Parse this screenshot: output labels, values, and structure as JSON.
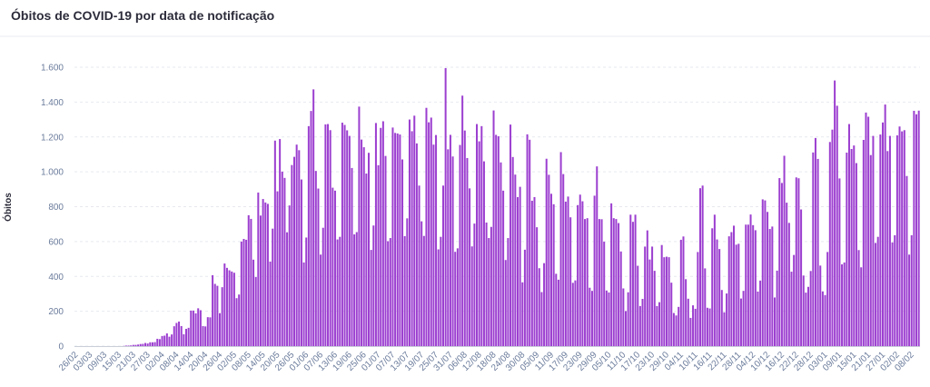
{
  "chart_data": {
    "type": "bar",
    "title": "Óbitos de COVID-19 por data de notificação",
    "y_label": "Óbitos",
    "color": "#9c3fd0",
    "grid": true,
    "ylim": [
      0,
      1600
    ],
    "yticks": [
      0,
      200,
      400,
      600,
      800,
      {
        "value": 1000,
        "label": "1.000"
      },
      {
        "value": 1200,
        "label": "1.200"
      },
      {
        "value": 1400,
        "label": "1.400"
      },
      {
        "value": 1600,
        "label": "1.600"
      }
    ],
    "categories": [
      "26/02",
      null,
      null,
      null,
      null,
      null,
      "03/03",
      null,
      null,
      null,
      null,
      null,
      "09/03",
      null,
      null,
      null,
      null,
      null,
      "15/03",
      null,
      null,
      null,
      null,
      null,
      "21/03",
      null,
      null,
      null,
      null,
      null,
      "27/03",
      null,
      null,
      null,
      null,
      null,
      "02/04",
      null,
      null,
      null,
      null,
      null,
      "08/04",
      null,
      null,
      null,
      null,
      null,
      "14/04",
      null,
      null,
      null,
      null,
      null,
      "20/04",
      null,
      null,
      null,
      null,
      null,
      "26/04",
      null,
      null,
      null,
      null,
      null,
      "02/05",
      null,
      null,
      null,
      null,
      null,
      "08/05",
      null,
      null,
      null,
      null,
      null,
      "14/05",
      null,
      null,
      null,
      null,
      null,
      "20/05",
      null,
      null,
      null,
      null,
      null,
      "26/05",
      null,
      null,
      null,
      null,
      null,
      "01/06",
      null,
      null,
      null,
      null,
      null,
      "07/06",
      null,
      null,
      null,
      null,
      null,
      "13/06",
      null,
      null,
      null,
      null,
      null,
      "19/06",
      null,
      null,
      null,
      null,
      null,
      "25/06",
      null,
      null,
      null,
      null,
      null,
      "01/07",
      null,
      null,
      null,
      null,
      null,
      "07/07",
      null,
      null,
      null,
      null,
      null,
      "13/07",
      null,
      null,
      null,
      null,
      null,
      "19/07",
      null,
      null,
      null,
      null,
      null,
      "25/07",
      null,
      null,
      null,
      null,
      null,
      "31/07",
      null,
      null,
      null,
      null,
      null,
      "06/08",
      null,
      null,
      null,
      null,
      null,
      "12/08",
      null,
      null,
      null,
      null,
      null,
      "18/08",
      null,
      null,
      null,
      null,
      null,
      "24/08",
      null,
      null,
      null,
      null,
      null,
      "30/08",
      null,
      null,
      null,
      null,
      null,
      "05/09",
      null,
      null,
      null,
      null,
      null,
      "11/09",
      null,
      null,
      null,
      null,
      null,
      "17/09",
      null,
      null,
      null,
      null,
      null,
      "23/09",
      null,
      null,
      null,
      null,
      null,
      "29/09",
      null,
      null,
      null,
      null,
      null,
      "05/10",
      null,
      null,
      null,
      null,
      null,
      "11/10",
      null,
      null,
      null,
      null,
      null,
      "17/10",
      null,
      null,
      null,
      null,
      null,
      "23/10",
      null,
      null,
      null,
      null,
      null,
      "29/10",
      null,
      null,
      null,
      null,
      null,
      "04/11",
      null,
      null,
      null,
      null,
      null,
      "10/11",
      null,
      null,
      null,
      null,
      null,
      "16/11",
      null,
      null,
      null,
      null,
      null,
      "22/11",
      null,
      null,
      null,
      null,
      null,
      "28/11",
      null,
      null,
      null,
      null,
      null,
      "04/12",
      null,
      null,
      null,
      null,
      null,
      "10/12",
      null,
      null,
      null,
      null,
      null,
      "16/12",
      null,
      null,
      null,
      null,
      null,
      "22/12",
      null,
      null,
      null,
      null,
      null,
      "28/12",
      null,
      null,
      null,
      null,
      null,
      "03/01",
      null,
      null,
      null,
      null,
      null,
      "09/01",
      null,
      null,
      null,
      null,
      null,
      "15/01",
      null,
      null,
      null,
      null,
      null,
      "21/01",
      null,
      null,
      null,
      null,
      null,
      "27/01",
      null,
      null,
      null,
      null,
      null,
      "02/02",
      null,
      null,
      null,
      null,
      null,
      "08/02",
      null,
      null,
      null
    ],
    "values": [
      0,
      0,
      0,
      0,
      0,
      0,
      0,
      0,
      0,
      0,
      0,
      0,
      0,
      0,
      0,
      0,
      0,
      0,
      0,
      0,
      1,
      3,
      3,
      4,
      7,
      7,
      9,
      12,
      13,
      18,
      15,
      22,
      22,
      23,
      42,
      40,
      58,
      60,
      73,
      54,
      67,
      114,
      133,
      141,
      115,
      68,
      99,
      105,
      204,
      204,
      188,
      217,
      206,
      115,
      113,
      166,
      165,
      407,
      357,
      346,
      189,
      338,
      474,
      449,
      435,
      428,
      421,
      275,
      296,
      600,
      615,
      610,
      751,
      730,
      496,
      396,
      881,
      749,
      844,
      824,
      816,
      485,
      674,
      1179,
      888,
      1188,
      1001,
      965,
      653,
      807,
      1039,
      1086,
      1156,
      1124,
      956,
      480,
      623,
      1262,
      1349,
      1473,
      1005,
      904,
      525,
      679,
      1272,
      1274,
      1239,
      909,
      892,
      612,
      627,
      1282,
      1269,
      1238,
      1206,
      1022,
      641,
      654,
      1374,
      1185,
      1141,
      990,
      1109,
      552,
      692,
      1280,
      1038,
      1252,
      1290,
      1091,
      602,
      620,
      1254,
      1223,
      1220,
      1214,
      1071,
      631,
      733,
      1300,
      1233,
      1322,
      1163,
      921,
      716,
      632,
      1367,
      1284,
      1311,
      1156,
      1211,
      555,
      627,
      921,
      1595,
      1129,
      1212,
      1088,
      541,
      561,
      1154,
      1437,
      1237,
      1079,
      905,
      572,
      703,
      1274,
      1175,
      1262,
      1060,
      709,
      620,
      684,
      1352,
      1212,
      1204,
      1054,
      892,
      494,
      620,
      1271,
      1085,
      984,
      855,
      914,
      366,
      553,
      1215,
      1184,
      834,
      855,
      682,
      447,
      310,
      476,
      1075,
      983,
      874,
      814,
      415,
      381,
      1113,
      987,
      829,
      858,
      739,
      363,
      377,
      809,
      869,
      831,
      729,
      734,
      335,
      317,
      863,
      1031,
      729,
      728,
      599,
      319,
      308,
      819,
      734,
      729,
      706,
      543,
      331,
      201,
      309,
      754,
      713,
      754,
      461,
      230,
      271,
      571,
      664,
      497,
      571,
      432,
      230,
      252,
      580,
      510,
      513,
      510,
      364,
      190,
      176,
      225,
      610,
      629,
      384,
      272,
      162,
      234,
      214,
      540,
      906,
      921,
      446,
      220,
      216,
      676,
      754,
      612,
      557,
      322,
      194,
      302,
      630,
      654,
      691,
      582,
      587,
      273,
      317,
      697,
      697,
      755,
      694,
      665,
      313,
      376,
      842,
      836,
      770,
      672,
      686,
      279,
      433,
      964,
      936,
      1092,
      823,
      707,
      427,
      523,
      968,
      963,
      784,
      405,
      307,
      340,
      431,
      1111,
      1194,
      1074,
      462,
      314,
      293,
      540,
      1171,
      1242,
      1524,
      1379,
      962,
      469,
      480,
      1110,
      1274,
      1131,
      1151,
      1050,
      551,
      452,
      1183,
      1340,
      1316,
      1096,
      1206,
      592,
      627,
      1214,
      1283,
      1386,
      1119,
      1206,
      595,
      636,
      1209,
      1260,
      1232,
      1239,
      976,
      525,
      636,
      1350,
      1330,
      1351
    ]
  }
}
